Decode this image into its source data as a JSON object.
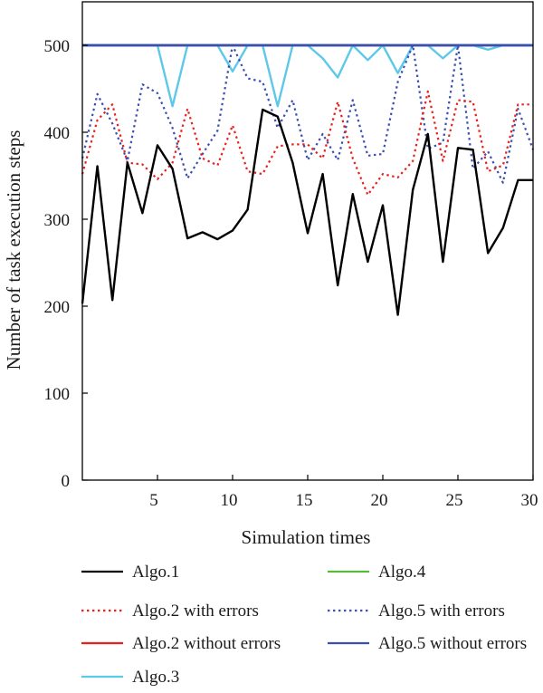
{
  "chart_data": {
    "type": "line",
    "xlabel": "Simulation times",
    "ylabel": "Number of task execution steps",
    "xlim": [
      0,
      30
    ],
    "ylim": [
      0,
      550
    ],
    "xticks": [
      5,
      10,
      15,
      20,
      25,
      30
    ],
    "yticks": [
      0,
      100,
      200,
      300,
      400,
      500
    ],
    "grid": false,
    "legend_position": "bottom",
    "x": [
      0,
      1,
      2,
      3,
      4,
      5,
      6,
      7,
      8,
      9,
      10,
      11,
      12,
      13,
      14,
      15,
      16,
      17,
      18,
      19,
      20,
      21,
      22,
      23,
      24,
      25,
      26,
      27,
      28,
      29,
      30
    ],
    "series": [
      {
        "name": "Algo.1",
        "color": "#000000",
        "dash": "solid",
        "values": [
          203,
          361,
          207,
          365,
          307,
          385,
          358,
          278,
          285,
          277,
          287,
          311,
          426,
          418,
          365,
          284,
          352,
          224,
          329,
          251,
          316,
          190,
          334,
          398,
          251,
          382,
          380,
          261,
          290,
          345,
          345
        ]
      },
      {
        "name": "Algo.2 with errors",
        "color": "#e8211c",
        "dash": "dotted",
        "values": [
          352,
          414,
          432,
          365,
          363,
          346,
          365,
          427,
          370,
          362,
          408,
          355,
          352,
          384,
          386,
          386,
          370,
          435,
          370,
          328,
          352,
          348,
          367,
          447,
          367,
          437,
          435,
          355,
          362,
          432,
          432
        ]
      },
      {
        "name": "Algo.2 without errors",
        "color": "#e8211c",
        "dash": "solid",
        "values": [
          500,
          500,
          500,
          500,
          500,
          500,
          500,
          500,
          500,
          500,
          500,
          500,
          500,
          500,
          500,
          500,
          500,
          500,
          500,
          500,
          500,
          500,
          500,
          500,
          500,
          500,
          500,
          500,
          500,
          500,
          500
        ]
      },
      {
        "name": "Algo.3",
        "color": "#5ec8e8",
        "dash": "solid",
        "values": [
          500,
          500,
          500,
          500,
          500,
          500,
          430,
          500,
          500,
          500,
          470,
          500,
          500,
          430,
          500,
          500,
          485,
          463,
          500,
          483,
          500,
          468,
          500,
          500,
          485,
          500,
          500,
          495,
          500,
          500,
          500
        ]
      },
      {
        "name": "Algo.4",
        "color": "#5cb83c",
        "dash": "solid",
        "values": [
          500,
          500,
          500,
          500,
          500,
          500,
          500,
          500,
          500,
          500,
          500,
          500,
          500,
          500,
          500,
          500,
          500,
          500,
          500,
          500,
          500,
          500,
          500,
          500,
          500,
          500,
          500,
          500,
          500,
          500,
          500
        ]
      },
      {
        "name": "Algo.5 with errors",
        "color": "#3b4fb0",
        "dash": "dotted",
        "values": [
          370,
          444,
          410,
          367,
          455,
          445,
          405,
          347,
          375,
          402,
          500,
          462,
          458,
          405,
          437,
          368,
          398,
          368,
          437,
          373,
          375,
          458,
          500,
          381,
          388,
          500,
          358,
          378,
          342,
          427,
          380
        ]
      },
      {
        "name": "Algo.5 without errors",
        "color": "#3b4fb0",
        "dash": "solid",
        "values": [
          500,
          500,
          500,
          500,
          500,
          500,
          500,
          500,
          500,
          500,
          500,
          500,
          500,
          500,
          500,
          500,
          500,
          500,
          500,
          500,
          500,
          500,
          500,
          500,
          500,
          500,
          500,
          500,
          500,
          500,
          500
        ]
      }
    ],
    "legend": {
      "columns": [
        [
          "Algo.1",
          "Algo.2 with errors",
          "Algo.2 without errors",
          "Algo.3"
        ],
        [
          "Algo.4",
          "Algo.5 with errors",
          "Algo.5 without errors"
        ]
      ]
    }
  }
}
